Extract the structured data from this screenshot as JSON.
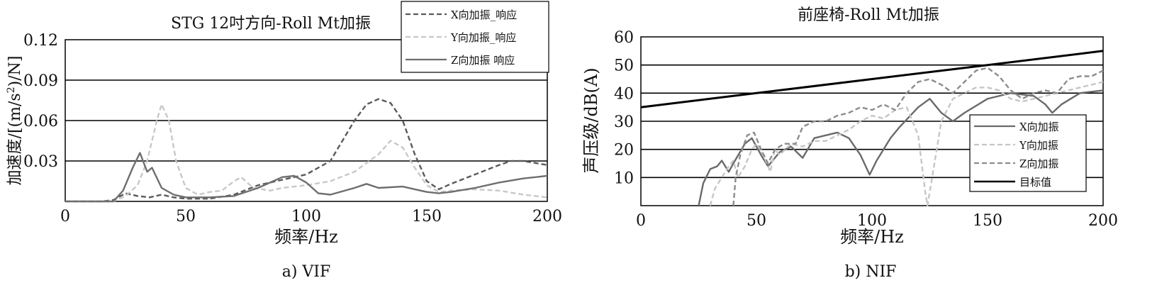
{
  "chart_data": [
    {
      "type": "line",
      "title": "STG 12吋方向-Roll Mt加振",
      "caption": "a) VIF",
      "xlabel": "频率/Hz",
      "ylabel_prefix": "加速度/[(m/s",
      "ylabel_sup": "2",
      "ylabel_suffix": ")/N]",
      "xlim": [
        0,
        200
      ],
      "ylim": [
        0,
        0.12
      ],
      "xticks": [
        0,
        50,
        100,
        150,
        200
      ],
      "yticks": [
        0.03,
        0.06,
        0.09,
        0.12
      ],
      "ytick_labels": [
        "0.03",
        "0.06",
        "0.09",
        "0.12"
      ],
      "grid": "horizontal",
      "legend_position": "top-right",
      "series": [
        {
          "name": "X向加振_响应",
          "color": "#5a5a5a",
          "style": "dashed",
          "points": [
            [
              0,
              0
            ],
            [
              15,
              0
            ],
            [
              20,
              0.001
            ],
            [
              25,
              0.006
            ],
            [
              30,
              0.004
            ],
            [
              35,
              0.003
            ],
            [
              40,
              0.005
            ],
            [
              45,
              0.003
            ],
            [
              50,
              0.002
            ],
            [
              60,
              0.002
            ],
            [
              70,
              0.005
            ],
            [
              80,
              0.012
            ],
            [
              90,
              0.016
            ],
            [
              100,
              0.02
            ],
            [
              110,
              0.03
            ],
            [
              115,
              0.045
            ],
            [
              120,
              0.06
            ],
            [
              125,
              0.072
            ],
            [
              130,
              0.076
            ],
            [
              135,
              0.073
            ],
            [
              140,
              0.06
            ],
            [
              145,
              0.035
            ],
            [
              150,
              0.015
            ],
            [
              155,
              0.009
            ],
            [
              160,
              0.013
            ],
            [
              170,
              0.02
            ],
            [
              180,
              0.027
            ],
            [
              185,
              0.03
            ],
            [
              190,
              0.03
            ],
            [
              200,
              0.027
            ]
          ]
        },
        {
          "name": "Y向加振_响应",
          "color": "#c8c8c8",
          "style": "dashed",
          "points": [
            [
              0,
              0
            ],
            [
              20,
              0
            ],
            [
              25,
              0.004
            ],
            [
              30,
              0.012
            ],
            [
              34,
              0.03
            ],
            [
              38,
              0.06
            ],
            [
              40,
              0.072
            ],
            [
              43,
              0.06
            ],
            [
              46,
              0.03
            ],
            [
              50,
              0.01
            ],
            [
              55,
              0.005
            ],
            [
              60,
              0.007
            ],
            [
              65,
              0.008
            ],
            [
              70,
              0.015
            ],
            [
              73,
              0.018
            ],
            [
              78,
              0.01
            ],
            [
              85,
              0.008
            ],
            [
              90,
              0.01
            ],
            [
              100,
              0.012
            ],
            [
              110,
              0.015
            ],
            [
              120,
              0.022
            ],
            [
              130,
              0.035
            ],
            [
              135,
              0.045
            ],
            [
              140,
              0.04
            ],
            [
              145,
              0.025
            ],
            [
              150,
              0.012
            ],
            [
              155,
              0.007
            ],
            [
              160,
              0.008
            ],
            [
              170,
              0.009
            ],
            [
              180,
              0.008
            ],
            [
              190,
              0.005
            ],
            [
              200,
              0.003
            ]
          ]
        },
        {
          "name": "Z向加振 响应",
          "color": "#6e6e6e",
          "style": "solid",
          "points": [
            [
              0,
              0
            ],
            [
              20,
              0
            ],
            [
              24,
              0.008
            ],
            [
              28,
              0.025
            ],
            [
              31,
              0.036
            ],
            [
              34,
              0.022
            ],
            [
              36,
              0.025
            ],
            [
              40,
              0.01
            ],
            [
              45,
              0.005
            ],
            [
              50,
              0.003
            ],
            [
              60,
              0.003
            ],
            [
              70,
              0.004
            ],
            [
              80,
              0.01
            ],
            [
              90,
              0.018
            ],
            [
              95,
              0.019
            ],
            [
              100,
              0.014
            ],
            [
              105,
              0.006
            ],
            [
              110,
              0.005
            ],
            [
              120,
              0.01
            ],
            [
              125,
              0.013
            ],
            [
              130,
              0.01
            ],
            [
              140,
              0.011
            ],
            [
              145,
              0.009
            ],
            [
              150,
              0.007
            ],
            [
              155,
              0.006
            ],
            [
              160,
              0.007
            ],
            [
              170,
              0.01
            ],
            [
              180,
              0.014
            ],
            [
              190,
              0.017
            ],
            [
              200,
              0.019
            ]
          ]
        }
      ]
    },
    {
      "type": "line",
      "title": "前座椅-Roll Mt加振",
      "caption": "b) NIF",
      "xlabel": "频率/Hz",
      "ylabel": "声压级/dB(A)",
      "xlim": [
        0,
        200
      ],
      "ylim": [
        0,
        60
      ],
      "xticks": [
        0,
        50,
        100,
        150,
        200
      ],
      "yticks": [
        10,
        20,
        30,
        40,
        50,
        60
      ],
      "grid": "horizontal",
      "legend_position": "bottom-right",
      "series": [
        {
          "name": "X向加振",
          "color": "#6a6a6a",
          "style": "solid",
          "points": [
            [
              25,
              0
            ],
            [
              27,
              8
            ],
            [
              30,
              13
            ],
            [
              33,
              14
            ],
            [
              35,
              16
            ],
            [
              38,
              12
            ],
            [
              40,
              15
            ],
            [
              45,
              22
            ],
            [
              48,
              24
            ],
            [
              52,
              18
            ],
            [
              55,
              14
            ],
            [
              60,
              19
            ],
            [
              65,
              21
            ],
            [
              70,
              17
            ],
            [
              75,
              24
            ],
            [
              80,
              25
            ],
            [
              85,
              26
            ],
            [
              90,
              24
            ],
            [
              95,
              18
            ],
            [
              99,
              11
            ],
            [
              102,
              16
            ],
            [
              108,
              24
            ],
            [
              112,
              28
            ],
            [
              120,
              35
            ],
            [
              125,
              38
            ],
            [
              130,
              33
            ],
            [
              135,
              30
            ],
            [
              140,
              33
            ],
            [
              150,
              38
            ],
            [
              160,
              40
            ],
            [
              170,
              39
            ],
            [
              175,
              36
            ],
            [
              178,
              33
            ],
            [
              182,
              36
            ],
            [
              190,
              40
            ],
            [
              200,
              41
            ]
          ]
        },
        {
          "name": "Y向加振",
          "color": "#c6c6c6",
          "style": "dashed",
          "points": [
            [
              30,
              0
            ],
            [
              32,
              6
            ],
            [
              35,
              10
            ],
            [
              38,
              14
            ],
            [
              40,
              16
            ],
            [
              42,
              10
            ],
            [
              45,
              14
            ],
            [
              48,
              20
            ],
            [
              50,
              22
            ],
            [
              53,
              18
            ],
            [
              56,
              12
            ],
            [
              58,
              20
            ],
            [
              60,
              18
            ],
            [
              65,
              22
            ],
            [
              70,
              21
            ],
            [
              75,
              23
            ],
            [
              80,
              23
            ],
            [
              85,
              25
            ],
            [
              90,
              27
            ],
            [
              95,
              30
            ],
            [
              100,
              32
            ],
            [
              105,
              31
            ],
            [
              110,
              34
            ],
            [
              115,
              35
            ],
            [
              120,
              25
            ],
            [
              123,
              5
            ],
            [
              124,
              0
            ],
            [
              126,
              10
            ],
            [
              130,
              30
            ],
            [
              135,
              38
            ],
            [
              140,
              40
            ],
            [
              145,
              42
            ],
            [
              150,
              42
            ],
            [
              155,
              41
            ],
            [
              160,
              38
            ],
            [
              165,
              37
            ],
            [
              170,
              38
            ],
            [
              180,
              40
            ],
            [
              190,
              42
            ],
            [
              200,
              44
            ]
          ]
        },
        {
          "name": "Z向加振",
          "color": "#8c8c8c",
          "style": "dashed",
          "points": [
            [
              40,
              0
            ],
            [
              41,
              10
            ],
            [
              43,
              18
            ],
            [
              46,
              25
            ],
            [
              49,
              26
            ],
            [
              52,
              20
            ],
            [
              55,
              15
            ],
            [
              58,
              20
            ],
            [
              62,
              22
            ],
            [
              67,
              22
            ],
            [
              70,
              28
            ],
            [
              75,
              30
            ],
            [
              80,
              30
            ],
            [
              85,
              32
            ],
            [
              90,
              33
            ],
            [
              95,
              35
            ],
            [
              100,
              34
            ],
            [
              105,
              36
            ],
            [
              110,
              34
            ],
            [
              115,
              40
            ],
            [
              120,
              44
            ],
            [
              125,
              45
            ],
            [
              130,
              43
            ],
            [
              135,
              40
            ],
            [
              140,
              44
            ],
            [
              145,
              48
            ],
            [
              150,
              49
            ],
            [
              155,
              46
            ],
            [
              160,
              41
            ],
            [
              165,
              38
            ],
            [
              170,
              40
            ],
            [
              175,
              41
            ],
            [
              180,
              40
            ],
            [
              185,
              45
            ],
            [
              190,
              46
            ],
            [
              195,
              46
            ],
            [
              200,
              48
            ]
          ]
        },
        {
          "name": "目标值",
          "color": "#000000",
          "style": "solid",
          "points": [
            [
              0,
              35
            ],
            [
              50,
              40
            ],
            [
              100,
              45
            ],
            [
              150,
              50
            ],
            [
              200,
              55
            ]
          ]
        }
      ]
    }
  ]
}
